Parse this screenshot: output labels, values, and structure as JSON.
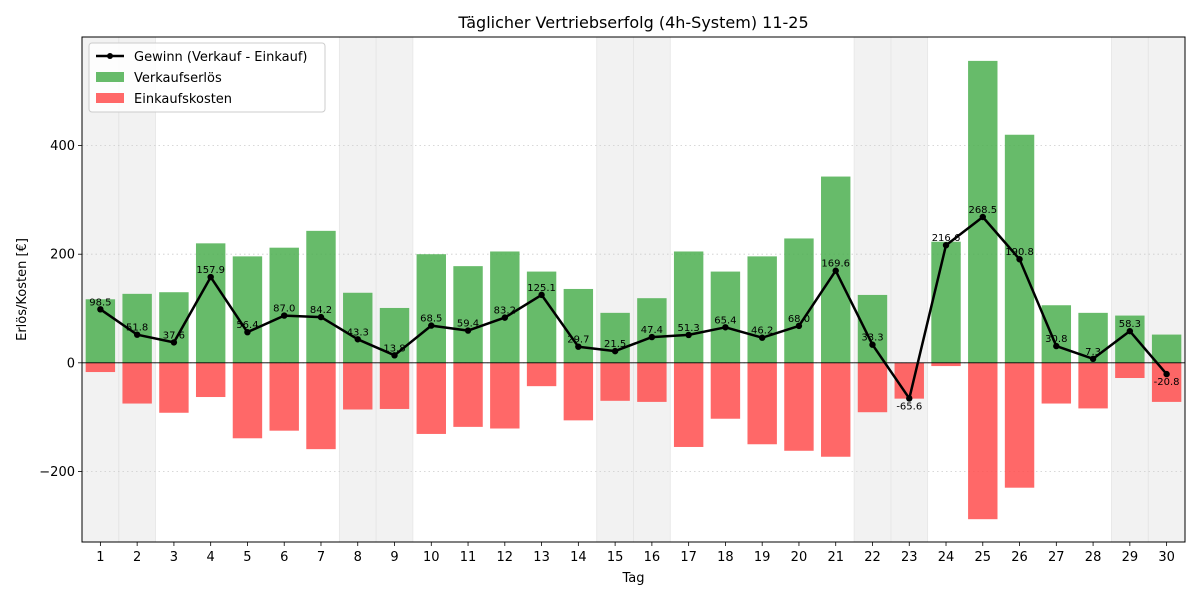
{
  "chart_data": {
    "type": "bar",
    "title": "Täglicher Vertriebserfolg (4h-System) 11-25",
    "xlabel": "Tag",
    "ylabel": "Erlös/Kosten [€]",
    "ylim": [
      -330,
      600
    ],
    "yticks": [
      -200,
      0,
      200,
      400
    ],
    "grid": true,
    "legend_position": "top-left",
    "categories": [
      1,
      2,
      3,
      4,
      5,
      6,
      7,
      8,
      9,
      10,
      11,
      12,
      13,
      14,
      15,
      16,
      17,
      18,
      19,
      20,
      21,
      22,
      23,
      24,
      25,
      26,
      27,
      28,
      29,
      30
    ],
    "weekend_days": [
      1,
      2,
      8,
      9,
      15,
      16,
      22,
      23,
      29,
      30
    ],
    "series": [
      {
        "name": "Gewinn (Verkauf - Einkauf)",
        "type": "line",
        "color": "#000000",
        "values": [
          98.5,
          51.8,
          37.6,
          157.9,
          56.4,
          87.0,
          84.2,
          43.3,
          13.8,
          68.5,
          59.4,
          83.2,
          125.1,
          29.7,
          21.5,
          47.4,
          51.3,
          65.4,
          46.2,
          68.0,
          169.6,
          33.3,
          -65.6,
          216.6,
          268.5,
          190.8,
          30.8,
          7.3,
          58.3,
          -20.8
        ],
        "labels": [
          "98.5",
          "51.8",
          "37.6",
          "157.9",
          "56.4",
          "87.0",
          "84.2",
          "43.3",
          "13.8",
          "68.5",
          "59.4",
          "83.2",
          "125.1",
          "29.7",
          "21.5",
          "47.4",
          "51.3",
          "65.4",
          "46.2",
          "68.0",
          "169.6",
          "33.3",
          "-65.6",
          "216.6",
          "268.5",
          "190.8",
          "30.8",
          "7.3",
          "58.3",
          "-20.8"
        ]
      },
      {
        "name": "Verkaufserlös",
        "type": "bar",
        "color": "#4caf50",
        "values": [
          117,
          127,
          130,
          220,
          196,
          212,
          243,
          129,
          101,
          200,
          178,
          205,
          168,
          136,
          92,
          119,
          205,
          168,
          196,
          229,
          343,
          125,
          0,
          223,
          556,
          420,
          106,
          92,
          87,
          52
        ]
      },
      {
        "name": "Einkaufskosten",
        "type": "bar",
        "color": "#ff4d4d",
        "values": [
          -17,
          -75,
          -92,
          -63,
          -139,
          -125,
          -159,
          -86,
          -85,
          -131,
          -118,
          -121,
          -43,
          -106,
          -70,
          -72,
          -155,
          -103,
          -150,
          -162,
          -173,
          -91,
          -66,
          -6,
          -288,
          -230,
          -75,
          -84,
          -28,
          -72
        ]
      }
    ]
  }
}
